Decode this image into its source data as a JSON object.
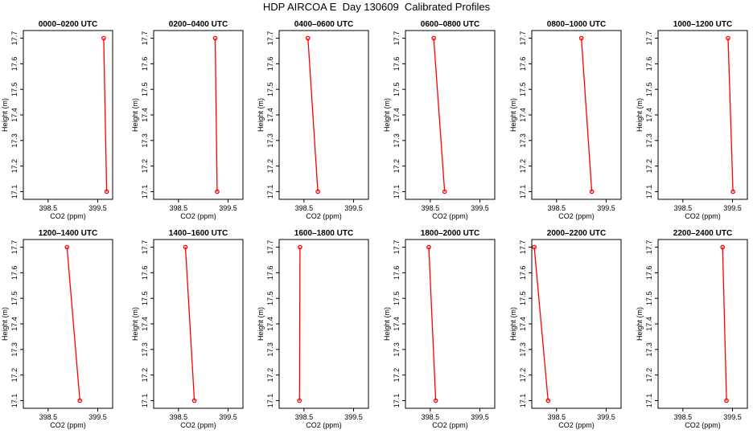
{
  "title": "HDP AIRCOA E  Day 130609  Calibrated Profiles",
  "chart_data": {
    "type": "line",
    "shared_axes": {
      "xlabel": "CO2 (ppm)",
      "ylabel": "Height (m)",
      "xlim": [
        398.0,
        399.8
      ],
      "ylim": [
        17.07,
        17.73
      ],
      "xticks": [
        398.5,
        399.5
      ],
      "yticks": [
        17.1,
        17.2,
        17.3,
        17.4,
        17.5,
        17.6,
        17.7
      ],
      "line_color": "#ff0000",
      "marker": "open-circle"
    },
    "panels": [
      {
        "title": "0000–0200 UTC",
        "points": [
          {
            "x": 399.62,
            "y": 17.7
          },
          {
            "x": 399.68,
            "y": 17.1
          }
        ]
      },
      {
        "title": "0200–0400 UTC",
        "points": [
          {
            "x": 399.24,
            "y": 17.7
          },
          {
            "x": 399.28,
            "y": 17.1
          }
        ]
      },
      {
        "title": "0400–0600 UTC",
        "points": [
          {
            "x": 398.58,
            "y": 17.7
          },
          {
            "x": 398.78,
            "y": 17.1
          }
        ]
      },
      {
        "title": "0600–0800 UTC",
        "points": [
          {
            "x": 398.57,
            "y": 17.7
          },
          {
            "x": 398.79,
            "y": 17.1
          }
        ]
      },
      {
        "title": "0800–1000 UTC",
        "points": [
          {
            "x": 399.0,
            "y": 17.7
          },
          {
            "x": 399.21,
            "y": 17.1
          }
        ]
      },
      {
        "title": "1000–1200 UTC",
        "points": [
          {
            "x": 399.41,
            "y": 17.7
          },
          {
            "x": 399.51,
            "y": 17.1
          }
        ]
      },
      {
        "title": "1200–1400 UTC",
        "points": [
          {
            "x": 398.88,
            "y": 17.7
          },
          {
            "x": 399.14,
            "y": 17.1
          }
        ]
      },
      {
        "title": "1400–1600 UTC",
        "points": [
          {
            "x": 398.64,
            "y": 17.7
          },
          {
            "x": 398.82,
            "y": 17.1
          }
        ]
      },
      {
        "title": "1600–1800 UTC",
        "points": [
          {
            "x": 398.42,
            "y": 17.7
          },
          {
            "x": 398.41,
            "y": 17.1
          }
        ]
      },
      {
        "title": "1800–2000 UTC",
        "points": [
          {
            "x": 398.47,
            "y": 17.7
          },
          {
            "x": 398.61,
            "y": 17.1
          }
        ]
      },
      {
        "title": "2000–2200 UTC",
        "points": [
          {
            "x": 398.05,
            "y": 17.7
          },
          {
            "x": 398.33,
            "y": 17.1
          }
        ]
      },
      {
        "title": "2200–2400 UTC",
        "points": [
          {
            "x": 399.3,
            "y": 17.7
          },
          {
            "x": 399.38,
            "y": 17.1
          }
        ]
      }
    ]
  }
}
